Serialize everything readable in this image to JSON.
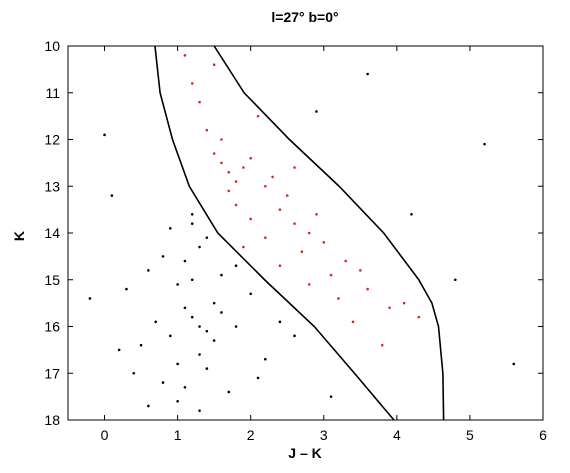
{
  "chart_data": {
    "type": "scatter",
    "title": "l=27° b=0°",
    "x_label": "J – K",
    "y_label": "K",
    "xlim": [
      -0.5,
      6
    ],
    "ylim": [
      10,
      18
    ],
    "y_inverted": true,
    "xticks": [
      0,
      1,
      2,
      3,
      4,
      5,
      6
    ],
    "yticks": [
      10,
      11,
      12,
      13,
      14,
      15,
      16,
      17,
      18
    ],
    "series": [
      {
        "color": "#000000",
        "x": [
          1.2,
          0.9,
          1.5,
          1.0,
          1.3,
          0.7,
          1.8,
          1.1,
          1.4,
          0.5,
          2.0,
          1.6,
          0.8,
          1.2,
          1.0,
          1.3,
          2.2,
          0.6,
          1.7,
          1.1,
          0.4,
          1.4,
          1.5,
          0.9,
          1.3,
          2.4,
          0.3,
          1.0,
          1.6,
          2.1,
          1.2,
          0.8,
          1.4,
          0.2,
          1.8,
          2.6,
          1.1,
          0.6,
          1.2,
          1.3,
          -0.2,
          3.1,
          5.2,
          4.8,
          0.1,
          2.9,
          5.6,
          3.6,
          4.2,
          0.0
        ],
        "values": [
          15.8,
          16.2,
          15.5,
          15.1,
          16.6,
          15.9,
          16.0,
          14.6,
          16.9,
          16.4,
          15.3,
          14.9,
          17.2,
          15.0,
          17.6,
          14.3,
          16.7,
          14.8,
          17.4,
          15.6,
          17.0,
          14.1,
          16.3,
          13.9,
          17.8,
          15.9,
          15.2,
          16.8,
          15.7,
          17.1,
          13.6,
          14.5,
          16.1,
          16.5,
          14.7,
          16.2,
          17.3,
          17.7,
          13.8,
          16.0,
          15.4,
          17.5,
          12.1,
          15.0,
          13.2,
          11.4,
          16.8,
          10.6,
          13.6,
          11.9
        ]
      },
      {
        "color": "#e0231c",
        "x": [
          1.7,
          1.6,
          1.8,
          1.5,
          1.9,
          1.7,
          2.0,
          1.6,
          2.2,
          2.4,
          2.6,
          2.8,
          3.0,
          2.3,
          2.5,
          3.3,
          2.7,
          3.5,
          2.9,
          3.1,
          1.4,
          1.3,
          1.2,
          2.1,
          1.8,
          3.6,
          3.2,
          2.0,
          2.6,
          3.9,
          4.1,
          3.4,
          1.5,
          2.2,
          1.9,
          3.8,
          2.4,
          4.3,
          1.1,
          2.8
        ],
        "values": [
          12.7,
          12.5,
          12.9,
          12.3,
          12.6,
          13.1,
          12.4,
          12.0,
          13.0,
          13.5,
          13.8,
          14.0,
          14.2,
          12.8,
          13.2,
          14.6,
          14.4,
          14.8,
          13.6,
          14.9,
          11.8,
          11.2,
          10.8,
          11.5,
          13.4,
          15.2,
          15.4,
          13.7,
          12.6,
          15.6,
          15.5,
          15.9,
          10.4,
          14.1,
          14.3,
          16.4,
          14.7,
          15.8,
          10.2,
          15.1
        ]
      }
    ],
    "curves": [
      {
        "color": "#000000",
        "x": [
          0.69,
          0.76,
          0.93,
          1.16,
          1.55,
          2.19,
          2.87,
          3.42,
          3.96
        ],
        "values": [
          10,
          11,
          12,
          13,
          14,
          15,
          16,
          17,
          18
        ]
      },
      {
        "color": "#000000",
        "x": [
          1.5,
          1.91,
          2.53,
          3.21,
          3.82,
          4.3,
          4.48,
          4.57,
          4.63,
          4.64
        ],
        "values": [
          10,
          11,
          12,
          13,
          14,
          15,
          15.5,
          16,
          17,
          18
        ]
      }
    ]
  }
}
